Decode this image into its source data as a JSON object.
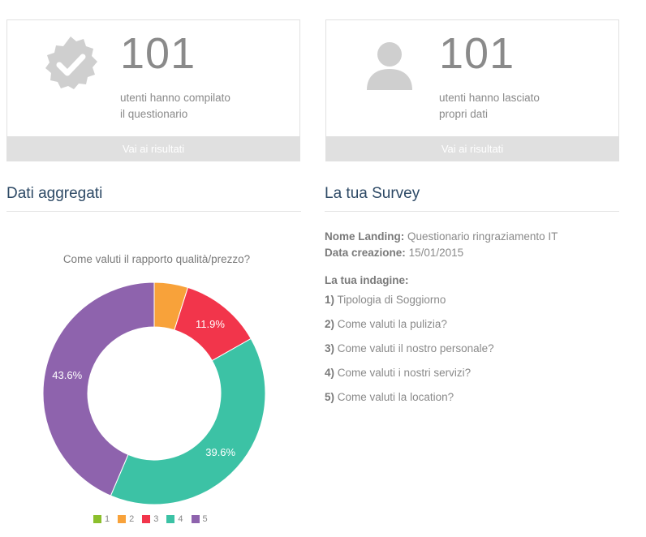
{
  "cards": [
    {
      "count": "101",
      "caption_line1": "utenti hanno compilato",
      "caption_line2": "il questionario",
      "footer": "Vai ai risultati",
      "icon": "check-badge-icon"
    },
    {
      "count": "101",
      "caption_line1": "utenti hanno lasciato",
      "caption_line2": "propri dati",
      "footer": "Vai ai risultati",
      "icon": "user-icon"
    }
  ],
  "sections": {
    "aggregated_title": "Dati aggregati",
    "survey_title": "La tua Survey"
  },
  "chart_data": {
    "type": "pie",
    "style": "donut",
    "title": "Come valuti il rapporto qualità/prezzo?",
    "categories": [
      "1",
      "2",
      "3",
      "4",
      "5"
    ],
    "values": [
      0,
      4.9,
      11.9,
      39.6,
      43.6
    ],
    "labels": [
      "",
      "",
      "11.9%",
      "39.6%",
      "43.6%"
    ],
    "colors": [
      "#8bbf2c",
      "#f8a23a",
      "#f2354b",
      "#3cc2a5",
      "#8e63ad"
    ],
    "legend_position": "bottom"
  },
  "survey": {
    "landing_label": "Nome Landing:",
    "landing_value": "Questionario ringraziamento IT",
    "date_label": "Data creazione:",
    "date_value": "15/01/2015",
    "questions_heading": "La tua indagine:",
    "questions": [
      {
        "num": "1)",
        "text": "Tipologia di Soggiorno"
      },
      {
        "num": "2)",
        "text": "Come valuti la pulizia?"
      },
      {
        "num": "3)",
        "text": "Come valuti il nostro personale?"
      },
      {
        "num": "4)",
        "text": "Come valuti i nostri servizi?"
      },
      {
        "num": "5)",
        "text": "Come valuti la location?"
      }
    ]
  }
}
